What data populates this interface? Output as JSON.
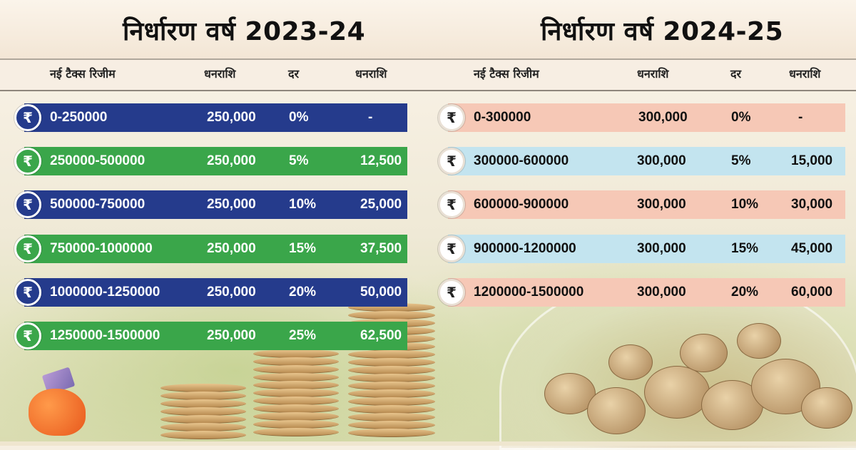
{
  "panels": [
    {
      "year_title": "निर्धारण वर्ष 2023-24",
      "headers": [
        "नई टैक्स रिजीम",
        "धनराशि",
        "दर",
        "धनराशि"
      ],
      "rupee_symbol": "₹",
      "rows": [
        {
          "range": "0-250000",
          "amount": "250,000",
          "rate": "0%",
          "tax": "-",
          "color": "#253b8c"
        },
        {
          "range": "250000-500000",
          "amount": "250,000",
          "rate": "5%",
          "tax": "12,500",
          "color": "#3aa64a"
        },
        {
          "range": "500000-750000",
          "amount": "250,000",
          "rate": "10%",
          "tax": "25,000",
          "color": "#253b8c"
        },
        {
          "range": "750000-1000000",
          "amount": "250,000",
          "rate": "15%",
          "tax": "37,500",
          "color": "#3aa64a"
        },
        {
          "range": "1000000-1250000",
          "amount": "250,000",
          "rate": "20%",
          "tax": "50,000",
          "color": "#253b8c"
        },
        {
          "range": "1250000-1500000",
          "amount": "250,000",
          "rate": "25%",
          "tax": "62,500",
          "color": "#3aa64a"
        }
      ]
    },
    {
      "year_title": "निर्धारण वर्ष 2024-25",
      "headers": [
        "नई टैक्स रिजीम",
        "धनराशि",
        "दर",
        "धनराशि"
      ],
      "rupee_symbol": "₹",
      "rows": [
        {
          "range": "0-300000",
          "amount": "300,000",
          "rate": "0%",
          "tax": "-",
          "color": "#f6c8b6"
        },
        {
          "range": "300000-600000",
          "amount": "300,000",
          "rate": "5%",
          "tax": "15,000",
          "color": "#c3e4ef"
        },
        {
          "range": "600000-900000",
          "amount": "300,000",
          "rate": "10%",
          "tax": "30,000",
          "color": "#f6c8b6"
        },
        {
          "range": "900000-1200000",
          "amount": "300,000",
          "rate": "15%",
          "tax": "45,000",
          "color": "#c3e4ef"
        },
        {
          "range": "1200000-1500000",
          "amount": "300,000",
          "rate": "20%",
          "tax": "60,000",
          "color": "#f6c8b6"
        }
      ]
    }
  ],
  "icons": [
    "rupee-icon",
    "coin-stack",
    "coin-jar",
    "piggy-bank-icon"
  ]
}
